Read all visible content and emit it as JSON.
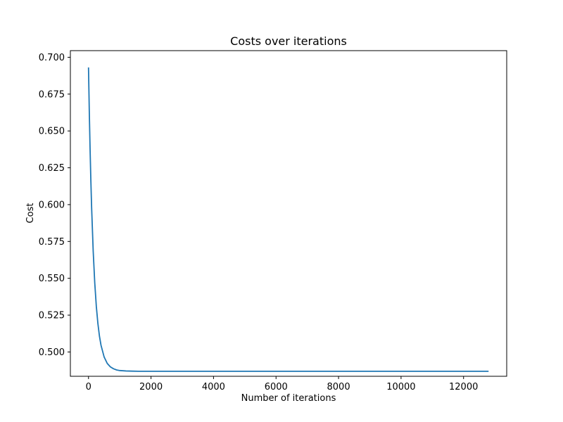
{
  "chart_data": {
    "type": "line",
    "title": "Costs over iterations",
    "xlabel": "Number of iterations",
    "ylabel": "Cost",
    "xlim": [
      -580,
      13380
    ],
    "ylim": [
      0.4835,
      0.7045
    ],
    "x_ticks": [
      0,
      2000,
      4000,
      6000,
      8000,
      10000,
      12000
    ],
    "x_tick_labels": [
      "0",
      "2000",
      "4000",
      "6000",
      "8000",
      "10000",
      "12000"
    ],
    "y_ticks": [
      0.5,
      0.525,
      0.55,
      0.575,
      0.6,
      0.625,
      0.65,
      0.675,
      0.7
    ],
    "y_tick_labels": [
      "0.500",
      "0.525",
      "0.550",
      "0.575",
      "0.600",
      "0.625",
      "0.650",
      "0.675",
      "0.700"
    ],
    "grid": false,
    "series": [
      {
        "color": "#1f77b4",
        "x": [
          0,
          25,
          50,
          75,
          100,
          150,
          200,
          250,
          300,
          350,
          400,
          500,
          600,
          700,
          800,
          900,
          1000,
          1200,
          1400,
          1600,
          1800,
          2000,
          2500,
          3000,
          4000,
          5000,
          6000,
          7000,
          8000,
          9000,
          10000,
          11000,
          12000,
          12800
        ],
        "y": [
          0.6931,
          0.6635,
          0.6382,
          0.6165,
          0.5979,
          0.5685,
          0.5469,
          0.531,
          0.5194,
          0.5108,
          0.5046,
          0.4966,
          0.4922,
          0.4899,
          0.4886,
          0.4878,
          0.4874,
          0.4871,
          0.487,
          0.4869,
          0.4869,
          0.4869,
          0.4869,
          0.4869,
          0.4869,
          0.4869,
          0.4869,
          0.4869,
          0.4869,
          0.4869,
          0.4869,
          0.4869,
          0.4869,
          0.4869
        ]
      }
    ]
  }
}
